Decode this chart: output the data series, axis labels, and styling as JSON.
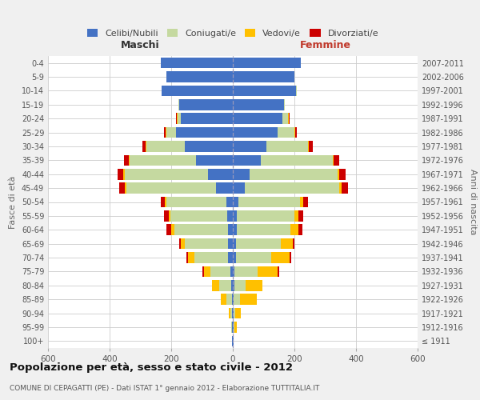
{
  "age_groups": [
    "100+",
    "95-99",
    "90-94",
    "85-89",
    "80-84",
    "75-79",
    "70-74",
    "65-69",
    "60-64",
    "55-59",
    "50-54",
    "45-49",
    "40-44",
    "35-39",
    "30-34",
    "25-29",
    "20-24",
    "15-19",
    "10-14",
    "5-9",
    "0-4"
  ],
  "birth_years": [
    "≤ 1911",
    "1912-1916",
    "1917-1921",
    "1922-1926",
    "1927-1931",
    "1932-1936",
    "1937-1941",
    "1942-1946",
    "1947-1951",
    "1952-1956",
    "1957-1961",
    "1962-1966",
    "1967-1971",
    "1972-1976",
    "1977-1981",
    "1982-1986",
    "1987-1991",
    "1992-1996",
    "1997-2001",
    "2002-2006",
    "2007-2011"
  ],
  "maschi": {
    "celibi": [
      2,
      2,
      2,
      3,
      5,
      8,
      15,
      15,
      15,
      18,
      20,
      55,
      80,
      120,
      155,
      185,
      170,
      175,
      230,
      215,
      235
    ],
    "coniugati": [
      1,
      2,
      5,
      18,
      38,
      65,
      110,
      140,
      175,
      185,
      195,
      290,
      270,
      215,
      125,
      30,
      10,
      2,
      0,
      0,
      0
    ],
    "vedovi": [
      0,
      2,
      5,
      18,
      25,
      20,
      20,
      15,
      10,
      5,
      5,
      5,
      5,
      3,
      3,
      3,
      2,
      0,
      0,
      0,
      0
    ],
    "divorziati": [
      0,
      0,
      0,
      0,
      0,
      5,
      5,
      5,
      15,
      15,
      15,
      20,
      20,
      15,
      10,
      5,
      2,
      0,
      0,
      0,
      0
    ]
  },
  "femmine": {
    "nubili": [
      2,
      2,
      2,
      3,
      4,
      6,
      10,
      10,
      12,
      14,
      18,
      40,
      55,
      90,
      110,
      145,
      160,
      165,
      205,
      200,
      220
    ],
    "coniugate": [
      0,
      2,
      5,
      20,
      38,
      75,
      115,
      145,
      175,
      185,
      200,
      305,
      285,
      235,
      135,
      55,
      20,
      5,
      2,
      0,
      0
    ],
    "vedove": [
      0,
      8,
      20,
      55,
      55,
      65,
      60,
      40,
      25,
      15,
      10,
      8,
      5,
      3,
      3,
      3,
      2,
      0,
      0,
      0,
      0
    ],
    "divorziate": [
      0,
      0,
      0,
      0,
      0,
      5,
      5,
      5,
      15,
      15,
      15,
      20,
      20,
      18,
      12,
      5,
      2,
      0,
      0,
      0,
      0
    ]
  },
  "colors": {
    "celibi": "#4472c4",
    "coniugati": "#c5d9a0",
    "vedovi": "#ffc000",
    "divorziati": "#cc0000"
  },
  "xlim": 600,
  "title": "Popolazione per età, sesso e stato civile - 2012",
  "subtitle": "COMUNE DI CEPAGATTI (PE) - Dati ISTAT 1° gennaio 2012 - Elaborazione TUTTITALIA.IT",
  "ylabel": "Fasce di età",
  "ylabel_right": "Anni di nascita",
  "xlabel_left": "Maschi",
  "xlabel_right": "Femmine",
  "bg_color": "#f0f0f0",
  "plot_bg_color": "#ffffff",
  "grid_color": "#cccccc",
  "legend_labels": [
    "Celibi/Nubili",
    "Coniugati/e",
    "Vedovi/e",
    "Divorziati/e"
  ]
}
